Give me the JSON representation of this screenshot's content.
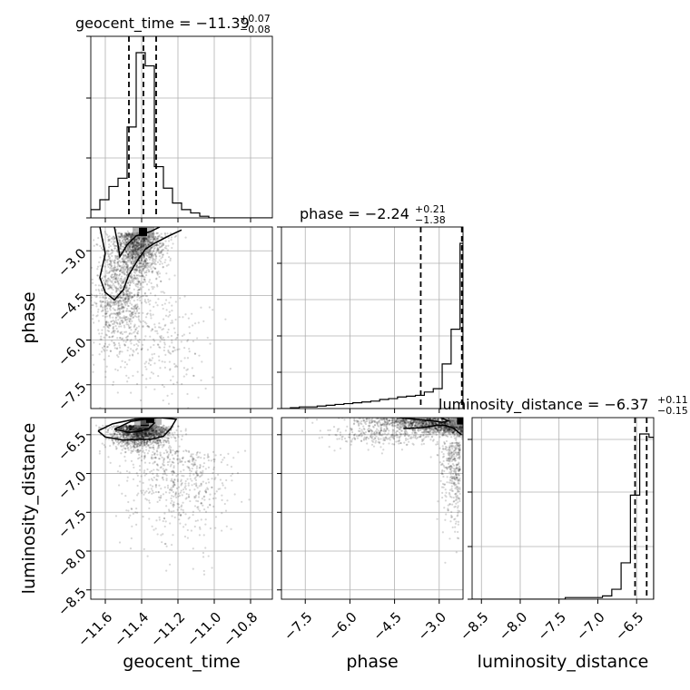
{
  "chart_data": {
    "type": "corner",
    "parameters": [
      {
        "name": "geocent_time",
        "range": [
          -11.68,
          -10.68
        ],
        "ticks": [
          -11.6,
          -11.4,
          -11.2,
          -11.0,
          -10.8
        ],
        "tick_labels": [
          "−11.6",
          "−11.4",
          "−11.2",
          "−11.0",
          "−10.8"
        ],
        "title": {
          "main": "geocent_time = −11.39",
          "sup": "+0.07",
          "sub": "−0.08"
        },
        "quantiles": [
          -11.47,
          -11.39,
          -11.32
        ],
        "histogram": {
          "bin_edges": [
            -11.68,
            -11.63,
            -11.58,
            -11.53,
            -11.48,
            -11.43,
            -11.38,
            -11.33,
            -11.28,
            -11.23,
            -11.18,
            -11.13,
            -11.08,
            -11.03,
            -10.98,
            -10.93,
            -10.88,
            -10.83,
            -10.78,
            -10.73,
            -10.68
          ],
          "counts": [
            0.05,
            0.11,
            0.19,
            0.24,
            0.55,
            1.0,
            0.92,
            0.31,
            0.18,
            0.09,
            0.05,
            0.03,
            0.01,
            0,
            0,
            0,
            0,
            0,
            0,
            0
          ],
          "ytick_fractions": [
            0.0,
            0.33,
            0.66,
            1.0
          ]
        }
      },
      {
        "name": "phase",
        "range": [
          -8.3,
          -2.2
        ],
        "ticks": [
          -7.5,
          -6.0,
          -4.5,
          -3.0
        ],
        "tick_labels": [
          "−7.5",
          "−6.0",
          "−4.5",
          "−3.0"
        ],
        "title": {
          "main": "phase = −2.24",
          "sup": "+0.21",
          "sub": "−1.38"
        },
        "quantiles": [
          -3.62,
          -2.24,
          -2.03
        ],
        "histogram": {
          "bin_edges": [
            -8.3,
            -8.0,
            -7.7,
            -7.4,
            -7.1,
            -6.8,
            -6.5,
            -6.2,
            -5.9,
            -5.6,
            -5.3,
            -5.0,
            -4.7,
            -4.4,
            -4.1,
            -3.8,
            -3.5,
            -3.2,
            -2.9,
            -2.6,
            -2.3,
            -2.2
          ],
          "counts": [
            0,
            0.005,
            0.01,
            0.01,
            0.015,
            0.02,
            0.025,
            0.03,
            0.035,
            0.04,
            0.045,
            0.055,
            0.06,
            0.07,
            0.075,
            0.08,
            0.1,
            0.12,
            0.27,
            0.48,
            1.0
          ],
          "ytick_fractions": [
            0.0,
            0.2,
            0.4,
            0.6,
            0.8,
            1.0
          ]
        }
      },
      {
        "name": "luminosity_distance",
        "range": [
          -8.62,
          -6.28
        ],
        "ticks": [
          -8.5,
          -8.0,
          -7.5,
          -7.0,
          -6.5
        ],
        "tick_labels": [
          "−8.5",
          "−8.0",
          "−7.5",
          "−7.0",
          "−6.5"
        ],
        "title": {
          "main": "luminosity_distance = −6.37",
          "sup": "+0.11",
          "sub": "−0.15"
        },
        "quantiles": [
          -6.52,
          -6.37,
          -6.26
        ],
        "histogram": {
          "bin_edges": [
            -8.62,
            -8.5,
            -8.38,
            -8.26,
            -8.14,
            -8.02,
            -7.9,
            -7.78,
            -7.66,
            -7.54,
            -7.42,
            -7.3,
            -7.18,
            -7.06,
            -6.94,
            -6.82,
            -6.7,
            -6.58,
            -6.46,
            -6.34,
            -6.28
          ],
          "counts": [
            0,
            0,
            0,
            0,
            0,
            0,
            0,
            0,
            0,
            0,
            0.01,
            0.01,
            0.01,
            0.01,
            0.02,
            0.06,
            0.22,
            0.63,
            1.0,
            0.98
          ],
          "ytick_fractions": [
            0.0,
            0.29,
            0.59,
            0.88
          ]
        }
      }
    ],
    "ylim_phase": [
      -8.3,
      -2.2
    ],
    "ylim_luminosity_distance": [
      -8.62,
      -6.28
    ],
    "contours": {
      "geocent_time_vs_phase": [
        [
          [
            -11.63,
            -2.2
          ],
          [
            -11.6,
            -3.1
          ],
          [
            -11.63,
            -3.9
          ],
          [
            -11.6,
            -4.4
          ],
          [
            -11.55,
            -4.65
          ],
          [
            -11.5,
            -4.3
          ],
          [
            -11.47,
            -3.8
          ],
          [
            -11.42,
            -3.3
          ],
          [
            -11.38,
            -2.95
          ],
          [
            -11.33,
            -2.75
          ],
          [
            -11.25,
            -2.5
          ],
          [
            -11.18,
            -2.3
          ]
        ],
        [
          [
            -11.55,
            -2.2
          ],
          [
            -11.53,
            -2.8
          ],
          [
            -11.52,
            -3.2
          ],
          [
            -11.48,
            -2.8
          ],
          [
            -11.43,
            -2.5
          ],
          [
            -11.35,
            -2.35
          ],
          [
            -11.3,
            -2.2
          ]
        ]
      ],
      "geocent_time_vs_luminosity_distance": [
        [
          [
            -11.64,
            -6.45
          ],
          [
            -11.6,
            -6.53
          ],
          [
            -11.5,
            -6.57
          ],
          [
            -11.42,
            -6.56
          ],
          [
            -11.35,
            -6.56
          ],
          [
            -11.28,
            -6.52
          ],
          [
            -11.24,
            -6.42
          ],
          [
            -11.21,
            -6.3
          ],
          [
            -11.3,
            -6.28
          ],
          [
            -11.44,
            -6.3
          ],
          [
            -11.56,
            -6.36
          ],
          [
            -11.64,
            -6.45
          ]
        ],
        [
          [
            -11.55,
            -6.43
          ],
          [
            -11.47,
            -6.47
          ],
          [
            -11.42,
            -6.46
          ],
          [
            -11.36,
            -6.42
          ],
          [
            -11.33,
            -6.35
          ],
          [
            -11.38,
            -6.3
          ],
          [
            -11.46,
            -6.33
          ],
          [
            -11.55,
            -6.43
          ]
        ]
      ],
      "phase_vs_luminosity_distance": [
        [
          [
            -4.2,
            -6.42
          ],
          [
            -3.6,
            -6.41
          ],
          [
            -3.1,
            -6.38
          ],
          [
            -2.8,
            -6.38
          ],
          [
            -2.5,
            -6.42
          ],
          [
            -2.35,
            -6.47
          ],
          [
            -2.25,
            -6.5
          ]
        ],
        [
          [
            -4.35,
            -6.28
          ],
          [
            -3.8,
            -6.3
          ],
          [
            -3.25,
            -6.32
          ],
          [
            -2.9,
            -6.34
          ],
          [
            -2.7,
            -6.32
          ],
          [
            -2.95,
            -6.28
          ]
        ]
      ]
    },
    "density_peaks": {
      "geocent_time_vs_phase": [
        [
          -11.39,
          -2.35
        ]
      ],
      "geocent_time_vs_luminosity_distance": [
        [
          -11.38,
          -6.33
        ],
        [
          -11.35,
          -6.29
        ]
      ],
      "phase_vs_luminosity_distance": [
        [
          -2.25,
          -6.31
        ]
      ]
    }
  }
}
